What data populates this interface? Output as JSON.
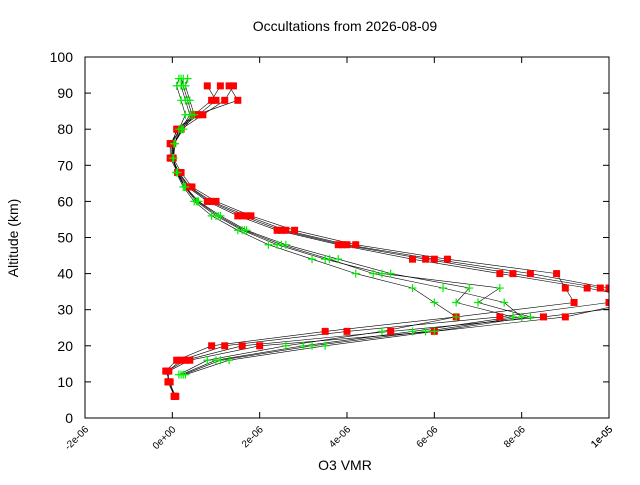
{
  "chart_data": {
    "type": "line",
    "title": "Occultations from 2026-08-09",
    "xlabel": "O3 VMR",
    "ylabel": "Altitude (km)",
    "xlim": [
      -2e-06,
      1e-05
    ],
    "ylim": [
      0,
      100
    ],
    "x_ticks": [
      -2e-06,
      0,
      2e-06,
      4e-06,
      6e-06,
      8e-06,
      1e-05,
      1.2e-05
    ],
    "x_tick_labels": [
      "-2e-06",
      "0e+00",
      "2e-06",
      "4e-06",
      "6e-06",
      "8e-06",
      "1e-05",
      "1e-05"
    ],
    "y_ticks": [
      0,
      10,
      20,
      30,
      40,
      50,
      60,
      70,
      80,
      90,
      100
    ],
    "y_tick_labels": [
      "0",
      "10",
      "20",
      "30",
      "40",
      "50",
      "60",
      "70",
      "80",
      "90",
      "100"
    ],
    "grid": false,
    "legend": "none",
    "colors": {
      "red": "#ff0000",
      "green": "#00ee00",
      "line": "#000000"
    },
    "series": [
      {
        "marker": "square",
        "color": "#ff0000",
        "profiles": [
          {
            "alt": [
              6,
              10,
              13,
              16,
              20,
              24,
              28,
              32,
              36,
              40,
              44,
              48,
              52,
              56,
              60,
              64,
              68,
              72,
              76,
              80,
              84,
              88,
              92
            ],
            "vmr": [
              5e-08,
              -1e-07,
              -1e-07,
              2e-07,
              1.2e-06,
              4e-06,
              7.5e-06,
              1e-05,
              1e-05,
              8.2e-06,
              6e-06,
              4e-06,
              2.6e-06,
              1.7e-06,
              9e-07,
              4e-07,
              1.5e-07,
              0,
              0,
              1e-07,
              5e-07,
              9e-07,
              1.1e-06
            ]
          },
          {
            "alt": [
              6,
              10,
              13,
              16,
              20,
              24,
              28,
              32,
              36,
              40,
              44,
              48,
              52,
              56,
              60,
              64,
              68,
              72,
              76,
              80,
              84,
              88,
              92
            ],
            "vmr": [
              8e-08,
              -8e-08,
              -1.2e-07,
              3e-07,
              1.6e-06,
              5e-06,
              8.5e-06,
              1.12e-05,
              9.5e-06,
              7.5e-06,
              5.5e-06,
              3.8e-06,
              2.4e-06,
              1.5e-06,
              8e-07,
              3.5e-07,
              1.2e-07,
              -5e-08,
              -5e-08,
              2e-07,
              7e-07,
              1.2e-06,
              1.4e-06
            ]
          },
          {
            "alt": [
              6,
              10,
              13,
              16,
              20,
              24,
              28,
              32,
              36,
              40,
              44,
              48,
              52,
              56,
              60,
              64,
              68,
              72,
              76,
              80,
              84,
              88,
              92
            ],
            "vmr": [
              4e-08,
              -5e-08,
              -1.5e-07,
              1e-07,
              9e-07,
              3.5e-06,
              6.5e-06,
              9.2e-06,
              9e-06,
              8.8e-06,
              6.3e-06,
              4.2e-06,
              2.8e-06,
              1.8e-06,
              1e-06,
              4.5e-07,
              2e-07,
              2e-08,
              1e-08,
              1.5e-07,
              6e-07,
              1e-06,
              8e-07
            ]
          },
          {
            "alt": [
              6,
              10,
              13,
              16,
              20,
              24,
              28,
              32,
              36,
              40,
              44,
              48,
              52,
              56,
              60,
              64,
              68,
              72,
              76,
              80,
              84,
              88,
              92
            ],
            "vmr": [
              6e-08,
              -1e-07,
              -8e-08,
              4e-07,
              2e-06,
              6e-06,
              9e-06,
              1.05e-05,
              9.8e-06,
              7.8e-06,
              5.8e-06,
              3.9e-06,
              2.5e-06,
              1.6e-06,
              8.5e-07,
              3.8e-07,
              1.4e-07,
              -2e-08,
              -3e-08,
              1.2e-07,
              5.5e-07,
              1.5e-06,
              1.3e-06
            ]
          }
        ]
      },
      {
        "marker": "plus",
        "color": "#00ee00",
        "profiles": [
          {
            "alt": [
              12,
              16,
              20,
              24,
              28,
              32,
              36,
              40,
              44,
              48,
              52,
              56,
              60,
              64,
              68,
              72,
              76,
              80,
              84,
              88,
              92,
              94
            ],
            "vmr": [
              2e-07,
              1e-06,
              3e-06,
              5.5e-06,
              7.8e-06,
              6.5e-06,
              6.8e-06,
              5e-06,
              3.8e-06,
              2.6e-06,
              1.7e-06,
              1.1e-06,
              6e-07,
              3e-07,
              1.2e-07,
              2e-08,
              5e-08,
              2e-07,
              4e-07,
              3e-07,
              2e-07,
              2.5e-07
            ]
          },
          {
            "alt": [
              12,
              16,
              20,
              24,
              28,
              32,
              36,
              40,
              44,
              48,
              52,
              56,
              60,
              64,
              68,
              72,
              76,
              80,
              84,
              88,
              92,
              94
            ],
            "vmr": [
              3e-07,
              1.3e-06,
              3.5e-06,
              6e-06,
              8.2e-06,
              7e-06,
              7.5e-06,
              4.8e-06,
              3.5e-06,
              2.4e-06,
              1.6e-06,
              1e-06,
              5.5e-07,
              2.8e-07,
              1e-07,
              1e-08,
              4e-08,
              2.5e-07,
              5e-07,
              4e-07,
              3e-07,
              3.5e-07
            ]
          },
          {
            "alt": [
              12,
              16,
              20,
              24,
              28,
              32,
              36,
              40,
              44,
              48,
              52,
              56,
              60,
              64,
              68,
              72,
              76,
              80,
              84,
              88,
              92,
              94
            ],
            "vmr": [
              1.5e-07,
              8e-07,
              2.6e-06,
              4.8e-06,
              6.5e-06,
              6e-06,
              5.5e-06,
              4.2e-06,
              3.2e-06,
              2.2e-06,
              1.5e-06,
              9e-07,
              5e-07,
              2.5e-07,
              9e-08,
              3e-08,
              6e-08,
              1.5e-07,
              3e-07,
              2e-07,
              1e-07,
              1.5e-07
            ]
          },
          {
            "alt": [
              12,
              16,
              20,
              24,
              28,
              32,
              36,
              40,
              44,
              48,
              52,
              56,
              60,
              64,
              68,
              72,
              76,
              80,
              84,
              88,
              92,
              94
            ],
            "vmr": [
              2.5e-07,
              1.1e-06,
              3.2e-06,
              5.8e-06,
              8e-06,
              7.6e-06,
              6.2e-06,
              4.6e-06,
              3.6e-06,
              2.5e-06,
              1.65e-06,
              1.05e-06,
              5.8e-07,
              2.9e-07,
              1.1e-07,
              2e-08,
              5e-08,
              2.2e-07,
              4.5e-07,
              3.5e-07,
              2.5e-07,
              2e-07
            ]
          }
        ]
      }
    ]
  }
}
